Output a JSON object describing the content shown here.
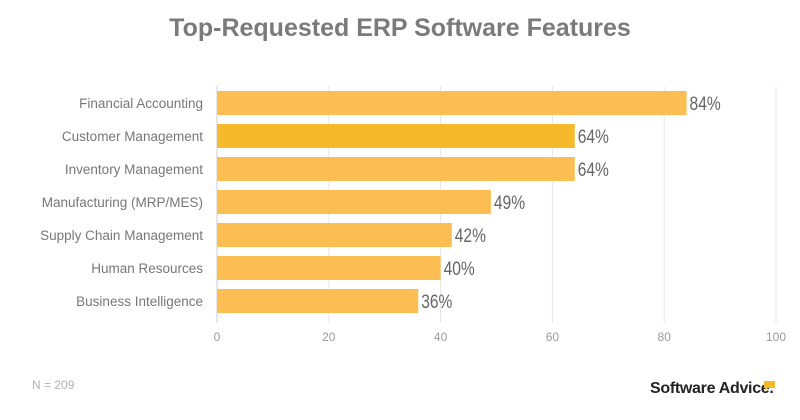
{
  "chart_data": {
    "type": "bar",
    "orientation": "horizontal",
    "title": "Top-Requested ERP Software Features",
    "categories": [
      "Financial Accounting",
      "Customer Management",
      "Inventory Management",
      "Manufacturing (MRP/MES)",
      "Supply Chain Management",
      "Human Resources",
      "Business Intelligence"
    ],
    "values": [
      84,
      64,
      64,
      49,
      42,
      40,
      36
    ],
    "data_labels": [
      "84%",
      "64%",
      "64%",
      "49%",
      "42%",
      "40%",
      "36%"
    ],
    "xlim": [
      0,
      100
    ],
    "xticks": [
      0,
      20,
      40,
      60,
      80,
      100
    ],
    "xlabel": "",
    "ylabel": "",
    "grid": true,
    "colors": {
      "bar": "#fcbd52",
      "highlight": "#f6b92b",
      "highlight_index": 1
    }
  },
  "footer": {
    "note": "N = 209",
    "brand": "Software Advice."
  }
}
